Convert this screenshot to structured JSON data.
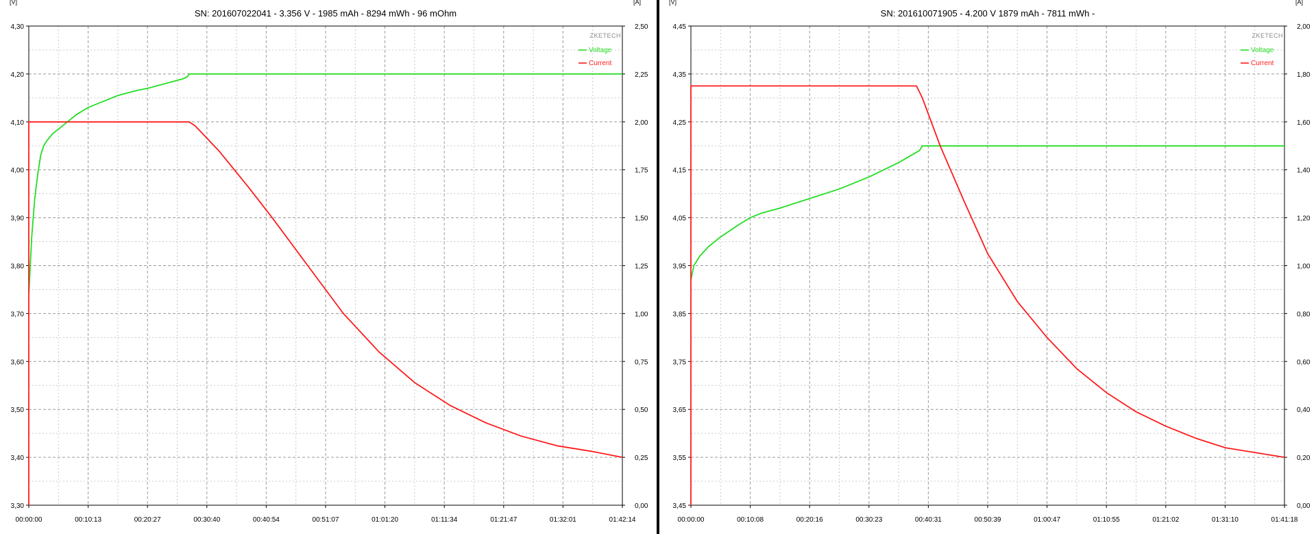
{
  "charts": [
    {
      "title": "SN: 201607022041 - 3.356 V - 1985 mAh - 8294 mWh - 96 mOhm",
      "left_unit": "[V]",
      "right_unit": "[A]",
      "brand": "ZKETECH",
      "legend": [
        {
          "label": "Voltage",
          "color": "#22dd22"
        },
        {
          "label": "Current",
          "color": "#ff1a1a"
        }
      ],
      "left_ticks": [
        "4,30",
        "4,20",
        "4,10",
        "4,00",
        "3,90",
        "3,80",
        "3,70",
        "3,60",
        "3,50",
        "3,40",
        "3,30"
      ],
      "right_ticks": [
        "2,50",
        "2,25",
        "2,00",
        "1,75",
        "1,50",
        "1,25",
        "1,00",
        "0,75",
        "0,50",
        "0,25",
        "0,00"
      ],
      "x_ticks": [
        "00:00:00",
        "00:10:13",
        "00:20:27",
        "00:30:40",
        "00:40:54",
        "00:51:07",
        "01:01:20",
        "01:11:34",
        "01:21:47",
        "01:32:01",
        "01:42:14"
      ]
    },
    {
      "title": "SN: 201610071905 - 4.200 V 1879 mAh - 7811 mWh -",
      "left_unit": "[V]",
      "right_unit": "[A]",
      "brand": "ZKETECH",
      "legend": [
        {
          "label": "Voltage",
          "color": "#22dd22"
        },
        {
          "label": "Current",
          "color": "#ff1a1a"
        }
      ],
      "left_ticks": [
        "4,45",
        "4,35",
        "4,25",
        "4,15",
        "4,05",
        "3,95",
        "3,85",
        "3,75",
        "3,65",
        "3,55",
        "3,45"
      ],
      "right_ticks": [
        "2,00",
        "1,80",
        "1,60",
        "1,40",
        "1,20",
        "1,00",
        "0,80",
        "0,60",
        "0,40",
        "0,20",
        "0,00"
      ],
      "x_ticks": [
        "00:00:00",
        "00:10:08",
        "00:20:16",
        "00:30:23",
        "00:40:31",
        "00:50:39",
        "01:00:47",
        "01:10:55",
        "01:21:02",
        "01:31:10",
        "01:41:18"
      ]
    }
  ],
  "chart_data": [
    {
      "type": "line",
      "title": "SN: 201607022041 - 3.356 V - 1985 mAh - 8294 mWh - 96 mOhm",
      "xlabel": "",
      "ylabel": "[V]",
      "y2label": "[A]",
      "xlim": [
        0,
        10
      ],
      "ylim": [
        3.3,
        4.3
      ],
      "y2lim": [
        0.0,
        2.5
      ],
      "grid": true,
      "legend": "top-right",
      "series": [
        {
          "name": "Voltage",
          "axis": "left",
          "color": "#22dd22",
          "x": [
            0.0,
            0.05,
            0.1,
            0.15,
            0.2,
            0.25,
            0.3,
            0.4,
            0.5,
            0.65,
            0.8,
            1.0,
            1.2,
            1.5,
            1.8,
            2.0,
            2.3,
            2.6,
            2.68,
            2.7,
            3.0,
            4.0,
            5.0,
            6.0,
            7.0,
            8.0,
            9.0,
            10.0
          ],
          "y": [
            3.74,
            3.86,
            3.94,
            3.99,
            4.03,
            4.05,
            4.06,
            4.075,
            4.085,
            4.1,
            4.115,
            4.13,
            4.14,
            4.155,
            4.165,
            4.17,
            4.18,
            4.19,
            4.195,
            4.2,
            4.2,
            4.2,
            4.2,
            4.2,
            4.2,
            4.2,
            4.2,
            4.2
          ]
        },
        {
          "name": "Current",
          "axis": "right",
          "color": "#ff1a1a",
          "x": [
            0.0,
            0.0,
            2.7,
            2.8,
            3.2,
            3.7,
            4.1,
            4.7,
            5.3,
            5.9,
            6.5,
            7.1,
            7.7,
            8.3,
            8.9,
            9.5,
            10.0
          ],
          "y": [
            0.0,
            2.0,
            2.0,
            1.98,
            1.85,
            1.66,
            1.5,
            1.25,
            1.0,
            0.8,
            0.64,
            0.52,
            0.43,
            0.36,
            0.31,
            0.28,
            0.25
          ]
        }
      ]
    },
    {
      "type": "line",
      "title": "SN: 201610071905 - 4.200 V 1879 mAh - 7811 mWh -",
      "xlabel": "",
      "ylabel": "[V]",
      "y2label": "[A]",
      "xlim": [
        0,
        10
      ],
      "ylim": [
        3.45,
        4.45
      ],
      "y2lim": [
        0.0,
        2.0
      ],
      "grid": true,
      "legend": "top-right",
      "series": [
        {
          "name": "Voltage",
          "axis": "left",
          "color": "#22dd22",
          "x": [
            0.0,
            0.05,
            0.15,
            0.3,
            0.5,
            0.8,
            1.0,
            1.2,
            1.5,
            2.0,
            2.5,
            3.0,
            3.5,
            3.85,
            3.9,
            4.0,
            5.0,
            6.0,
            7.0,
            8.0,
            9.0,
            10.0
          ],
          "y": [
            3.92,
            3.95,
            3.97,
            3.99,
            4.01,
            4.035,
            4.05,
            4.06,
            4.07,
            4.09,
            4.11,
            4.135,
            4.165,
            4.19,
            4.2,
            4.2,
            4.2,
            4.2,
            4.2,
            4.2,
            4.2,
            4.2
          ]
        },
        {
          "name": "Current",
          "axis": "right",
          "color": "#ff1a1a",
          "x": [
            0.0,
            0.0,
            3.8,
            3.9,
            4.2,
            4.6,
            5.0,
            5.5,
            6.0,
            6.5,
            7.0,
            7.5,
            8.0,
            8.5,
            9.0,
            9.5,
            10.0
          ],
          "y": [
            0.0,
            1.75,
            1.75,
            1.7,
            1.5,
            1.27,
            1.05,
            0.85,
            0.7,
            0.57,
            0.47,
            0.39,
            0.33,
            0.28,
            0.24,
            0.22,
            0.2
          ]
        }
      ]
    }
  ]
}
